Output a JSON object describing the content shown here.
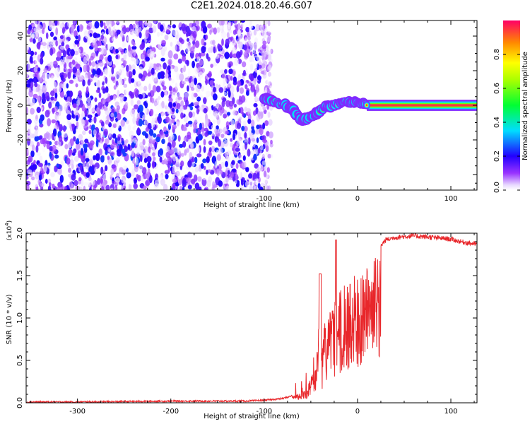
{
  "page": {
    "title": "C2E1.2024.018.20.46.G07"
  },
  "chart_data": [
    {
      "type": "heatmap",
      "xlabel": "Height of straight line (km)",
      "ylabel": "Frequency (Hz)",
      "xlim": [
        -355,
        128
      ],
      "ylim": [
        -49,
        49
      ],
      "x_ticks": [
        -300,
        -200,
        -100,
        0,
        100
      ],
      "y_ticks": [
        -40,
        -20,
        0,
        20,
        40
      ],
      "x_tick_labels": [
        "-300",
        "-200",
        "-100",
        "0",
        "100"
      ],
      "y_tick_labels": [
        "-40",
        "-20",
        "0",
        "20",
        "40"
      ],
      "colorbar": {
        "label": "Normalized spectral amplitude",
        "range": [
          0,
          1
        ],
        "ticks": [
          0.0,
          0.2,
          0.4,
          0.6,
          0.8
        ],
        "tick_labels": [
          "0.0",
          "0.2",
          "0.4",
          "0.6",
          "0.8"
        ]
      },
      "noise_region": {
        "x_range": [
          -355,
          -100
        ],
        "y_range": [
          -49,
          49
        ],
        "max_amplitude": 0.22
      },
      "ridge": {
        "x": [
          -100,
          -93,
          -85,
          -78,
          -70,
          -64,
          -58,
          -52,
          -46,
          -40,
          -34,
          -28,
          -20,
          -12,
          -5,
          0,
          10,
          128
        ],
        "freq": [
          4,
          3,
          1,
          0,
          -2,
          -6,
          -9,
          -7,
          -6,
          -3,
          -1,
          0,
          1,
          2,
          1,
          2,
          0.5,
          0
        ],
        "amplitude": [
          0.55,
          0.62,
          0.7,
          0.72,
          0.6,
          0.45,
          0.4,
          0.5,
          0.55,
          0.75,
          0.8,
          0.85,
          0.88,
          0.82,
          0.9,
          0.9,
          0.95,
          0.95
        ]
      }
    },
    {
      "type": "line",
      "xlabel": "Height of straight line (km)",
      "ylabel": "SNR (10 * v/v)",
      "y_multiplier": "(x10^4)",
      "xlim": [
        -355,
        128
      ],
      "ylim": [
        0,
        2.0
      ],
      "x_ticks": [
        -300,
        -200,
        -100,
        0,
        100
      ],
      "y_ticks": [
        0.0,
        0.5,
        1.0,
        1.5,
        2.0
      ],
      "x_tick_labels": [
        "-300",
        "-200",
        "-100",
        "0",
        "100"
      ],
      "y_tick_labels": [
        "0.0",
        "0.5",
        "1.0",
        "1.5",
        "2.0"
      ],
      "series": [
        {
          "color": "#e8262a",
          "x": [
            -355,
            -300,
            -200,
            -120,
            -100,
            -80,
            -65,
            -55,
            -50,
            -45,
            -42,
            -40,
            -38,
            -35,
            -30,
            -25,
            -20,
            -15,
            -10,
            -5,
            0,
            5,
            10,
            15,
            20,
            25,
            30,
            40,
            60,
            80,
            100,
            110,
            128
          ],
          "y": [
            0.01,
            0.01,
            0.02,
            0.02,
            0.03,
            0.05,
            0.1,
            0.15,
            0.3,
            0.5,
            0.85,
            1.5,
            0.6,
            1.0,
            1.1,
            1.2,
            1.3,
            1.4,
            1.45,
            1.5,
            1.55,
            1.6,
            1.65,
            1.7,
            1.78,
            1.85,
            1.92,
            1.95,
            1.97,
            1.95,
            1.93,
            1.9,
            1.87
          ]
        }
      ]
    }
  ]
}
